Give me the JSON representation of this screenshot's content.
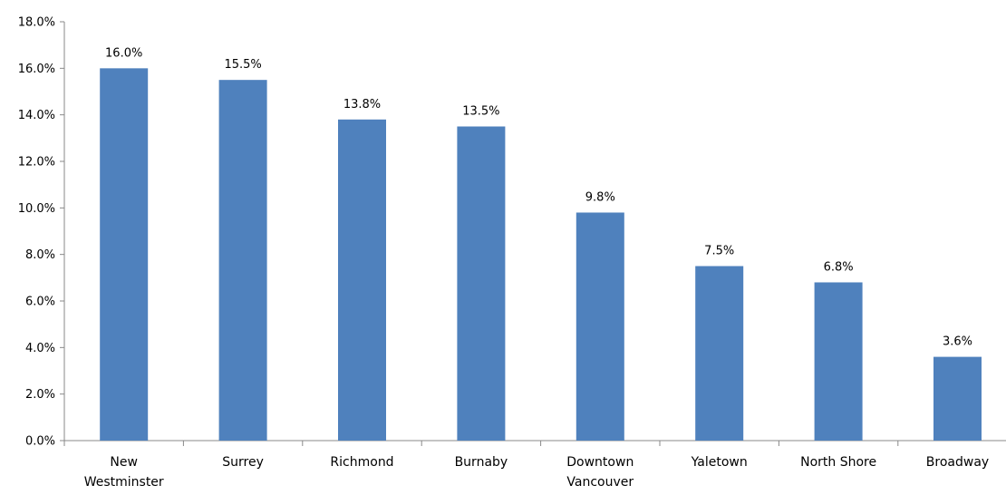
{
  "chart_data": {
    "type": "bar",
    "title": "",
    "xlabel": "",
    "ylabel": "",
    "categories": [
      [
        "New",
        "Westminster"
      ],
      [
        "Surrey"
      ],
      [
        "Richmond"
      ],
      [
        "Burnaby"
      ],
      [
        "Downtown",
        "Vancouver"
      ],
      [
        "Yaletown"
      ],
      [
        "North Shore"
      ],
      [
        "Broadway"
      ]
    ],
    "values": [
      16.0,
      15.5,
      13.8,
      13.5,
      9.8,
      7.5,
      6.8,
      3.6
    ],
    "value_labels": [
      "16.0%",
      "15.5%",
      "13.8%",
      "13.5%",
      "9.8%",
      "7.5%",
      "6.8%",
      "3.6%"
    ],
    "ylim": [
      0,
      18
    ],
    "yticks": [
      0,
      2,
      4,
      6,
      8,
      10,
      12,
      14,
      16,
      18
    ],
    "ytick_labels": [
      "0.0%",
      "2.0%",
      "4.0%",
      "6.0%",
      "8.0%",
      "10.0%",
      "12.0%",
      "14.0%",
      "16.0%",
      "18.0%"
    ],
    "grid": false,
    "legend": "none",
    "bar_color": "#4f81bd",
    "axis_color": "#888888"
  }
}
